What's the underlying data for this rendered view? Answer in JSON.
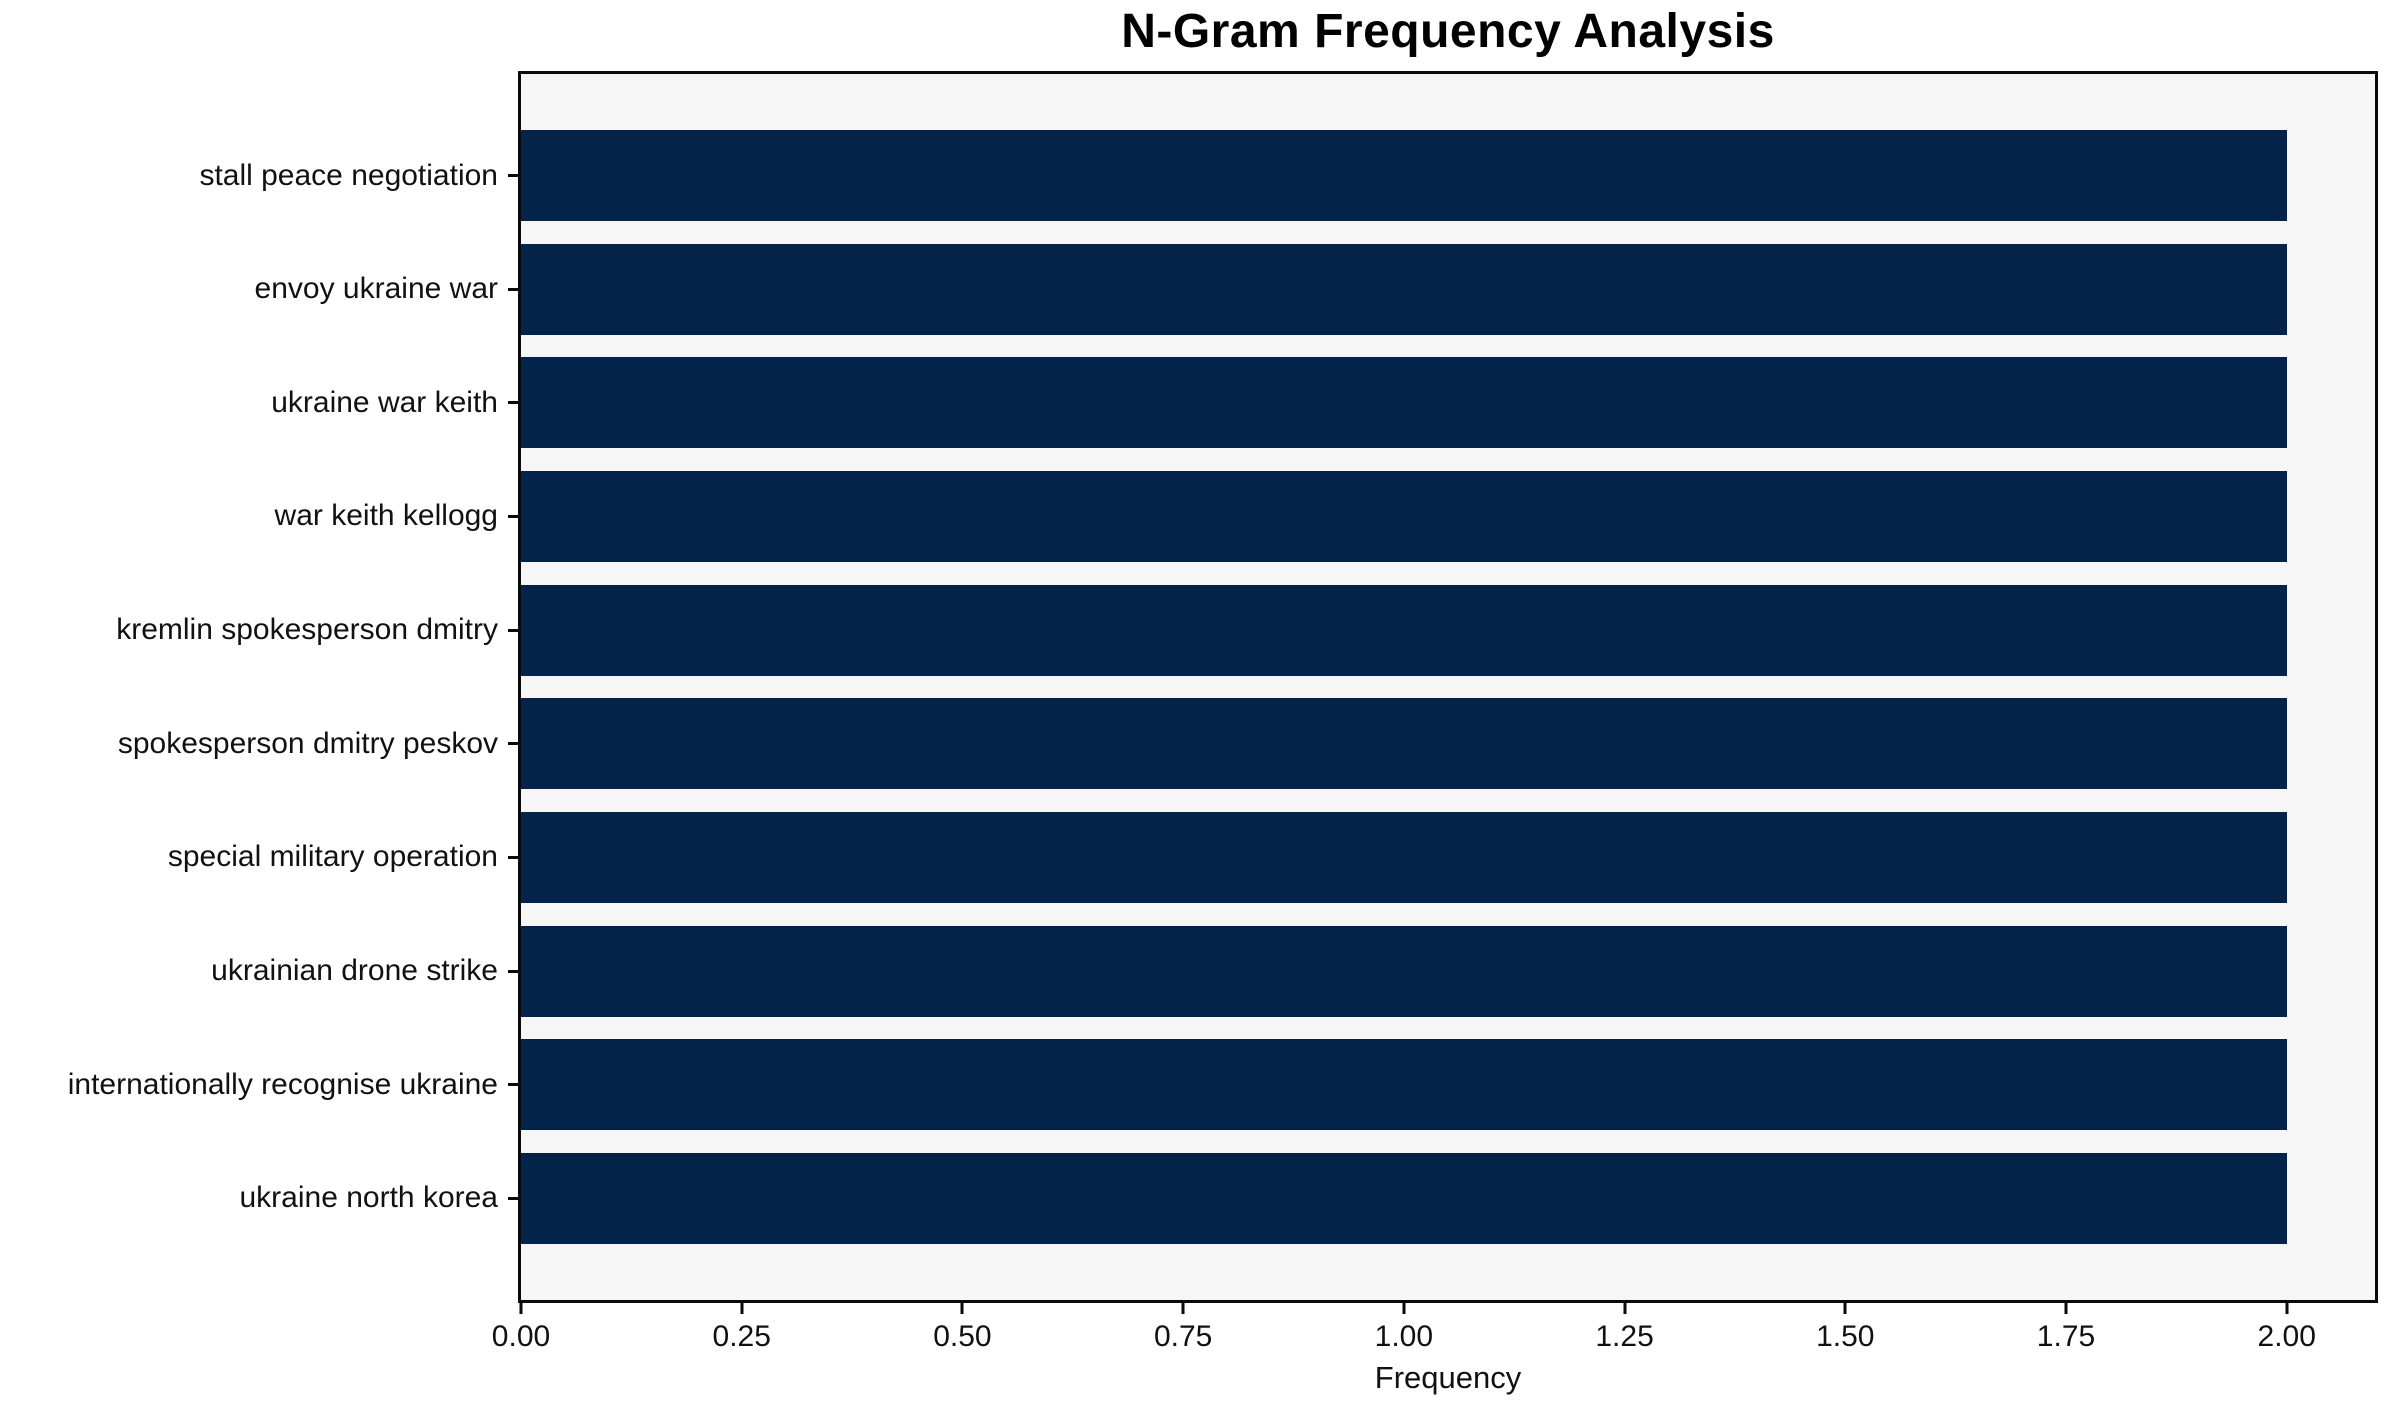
{
  "chart_data": {
    "type": "bar",
    "orientation": "horizontal",
    "title": "N-Gram Frequency Analysis",
    "xlabel": "Frequency",
    "ylabel": "",
    "categories": [
      "stall peace negotiation",
      "envoy ukraine war",
      "ukraine war keith",
      "war keith kellogg",
      "kremlin spokesperson dmitry",
      "spokesperson dmitry peskov",
      "special military operation",
      "ukrainian drone strike",
      "internationally recognise ukraine",
      "ukraine north korea"
    ],
    "values": [
      2,
      2,
      2,
      2,
      2,
      2,
      2,
      2,
      2,
      2
    ],
    "xlim": [
      0,
      2.1
    ],
    "xticks": {
      "values": [
        0,
        0.25,
        0.5,
        0.75,
        1.0,
        1.25,
        1.5,
        1.75,
        2.0
      ],
      "labels": [
        "0.00",
        "0.25",
        "0.50",
        "0.75",
        "1.00",
        "1.25",
        "1.50",
        "1.75",
        "2.00"
      ]
    },
    "grid": false,
    "legend": null,
    "colors": {
      "bar": "#03234a",
      "plot_background": "#f6f6f6",
      "figure_background": "#ffffff",
      "spine": "#0a0a0a",
      "text": "#111111"
    }
  }
}
